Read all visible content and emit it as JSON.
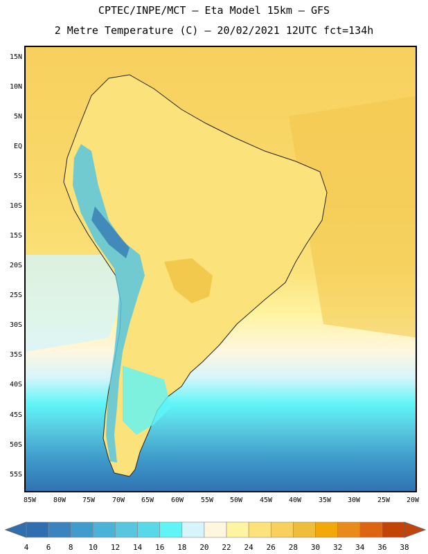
{
  "header": {
    "title_line1": "CPTEC/INPE/MCT –  Eta Model 15km – GFS",
    "title_line2": "2 Metre Temperature (C) – 20/02/2021 12UTC fct=134h"
  },
  "map": {
    "lat_labels": [
      "15N",
      "10N",
      "5N",
      "EQ",
      "5S",
      "10S",
      "15S",
      "20S",
      "25S",
      "30S",
      "35S",
      "40S",
      "45S",
      "50S",
      "55S"
    ],
    "lon_labels": [
      "85W",
      "80W",
      "75W",
      "70W",
      "65W",
      "60W",
      "55W",
      "50W",
      "45W",
      "40W",
      "35W",
      "30W",
      "25W",
      "20W"
    ]
  },
  "colorbar": {
    "labels": [
      "4",
      "6",
      "8",
      "10",
      "12",
      "14",
      "16",
      "18",
      "20",
      "22",
      "24",
      "26",
      "28",
      "30",
      "32",
      "34",
      "36",
      "38"
    ],
    "colors": [
      "#2f6fb0",
      "#3a83bf",
      "#3f9ccb",
      "#4cb3d8",
      "#58c6df",
      "#59d8e8",
      "#5ff5f7",
      "#d6f5fb",
      "#fff6df",
      "#fff4a2",
      "#fbe27a",
      "#f7d05e",
      "#eebd3a",
      "#f2a70b",
      "#e98b1a",
      "#dd6512",
      "#c34408"
    ]
  }
}
